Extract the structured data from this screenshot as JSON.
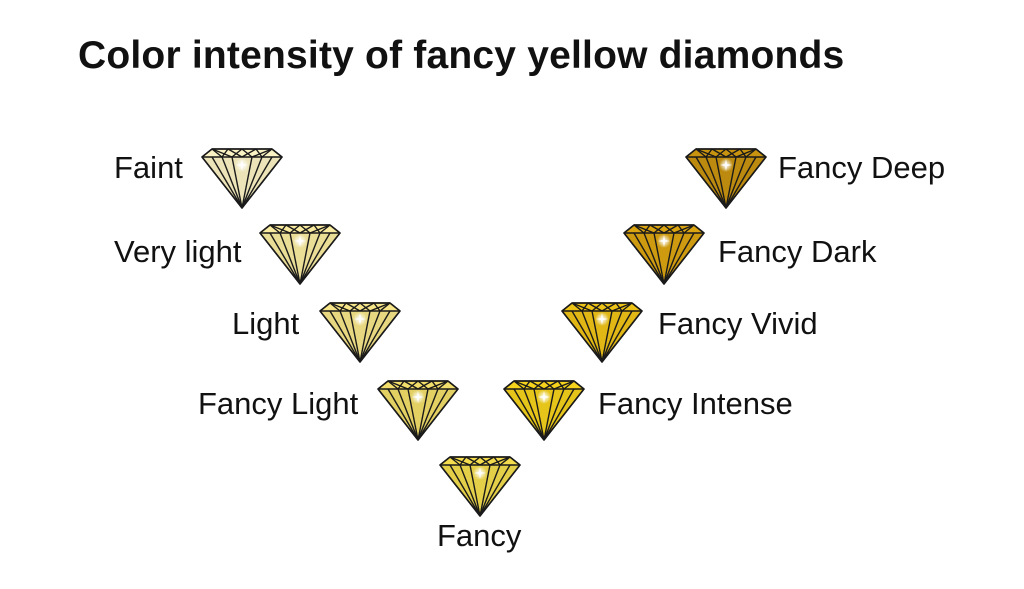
{
  "title": "Color intensity of fancy yellow diamonds",
  "grades": [
    {
      "label": "Faint",
      "color": "#fbf3c4"
    },
    {
      "label": "Very light",
      "color": "#f9eba0"
    },
    {
      "label": "Light",
      "color": "#f6e589"
    },
    {
      "label": "Fancy Light",
      "color": "#f2de6a"
    },
    {
      "label": "Fancy",
      "color": "#f3dc4e"
    },
    {
      "label": "Fancy Intense",
      "color": "#f5d21c"
    },
    {
      "label": "Fancy Vivid",
      "color": "#eec317"
    },
    {
      "label": "Fancy Dark",
      "color": "#dba512"
    },
    {
      "label": "Fancy Deep",
      "color": "#c8930f"
    }
  ],
  "icons": {
    "gem": "diamond-icon",
    "sparkle": "sparkle-icon"
  }
}
